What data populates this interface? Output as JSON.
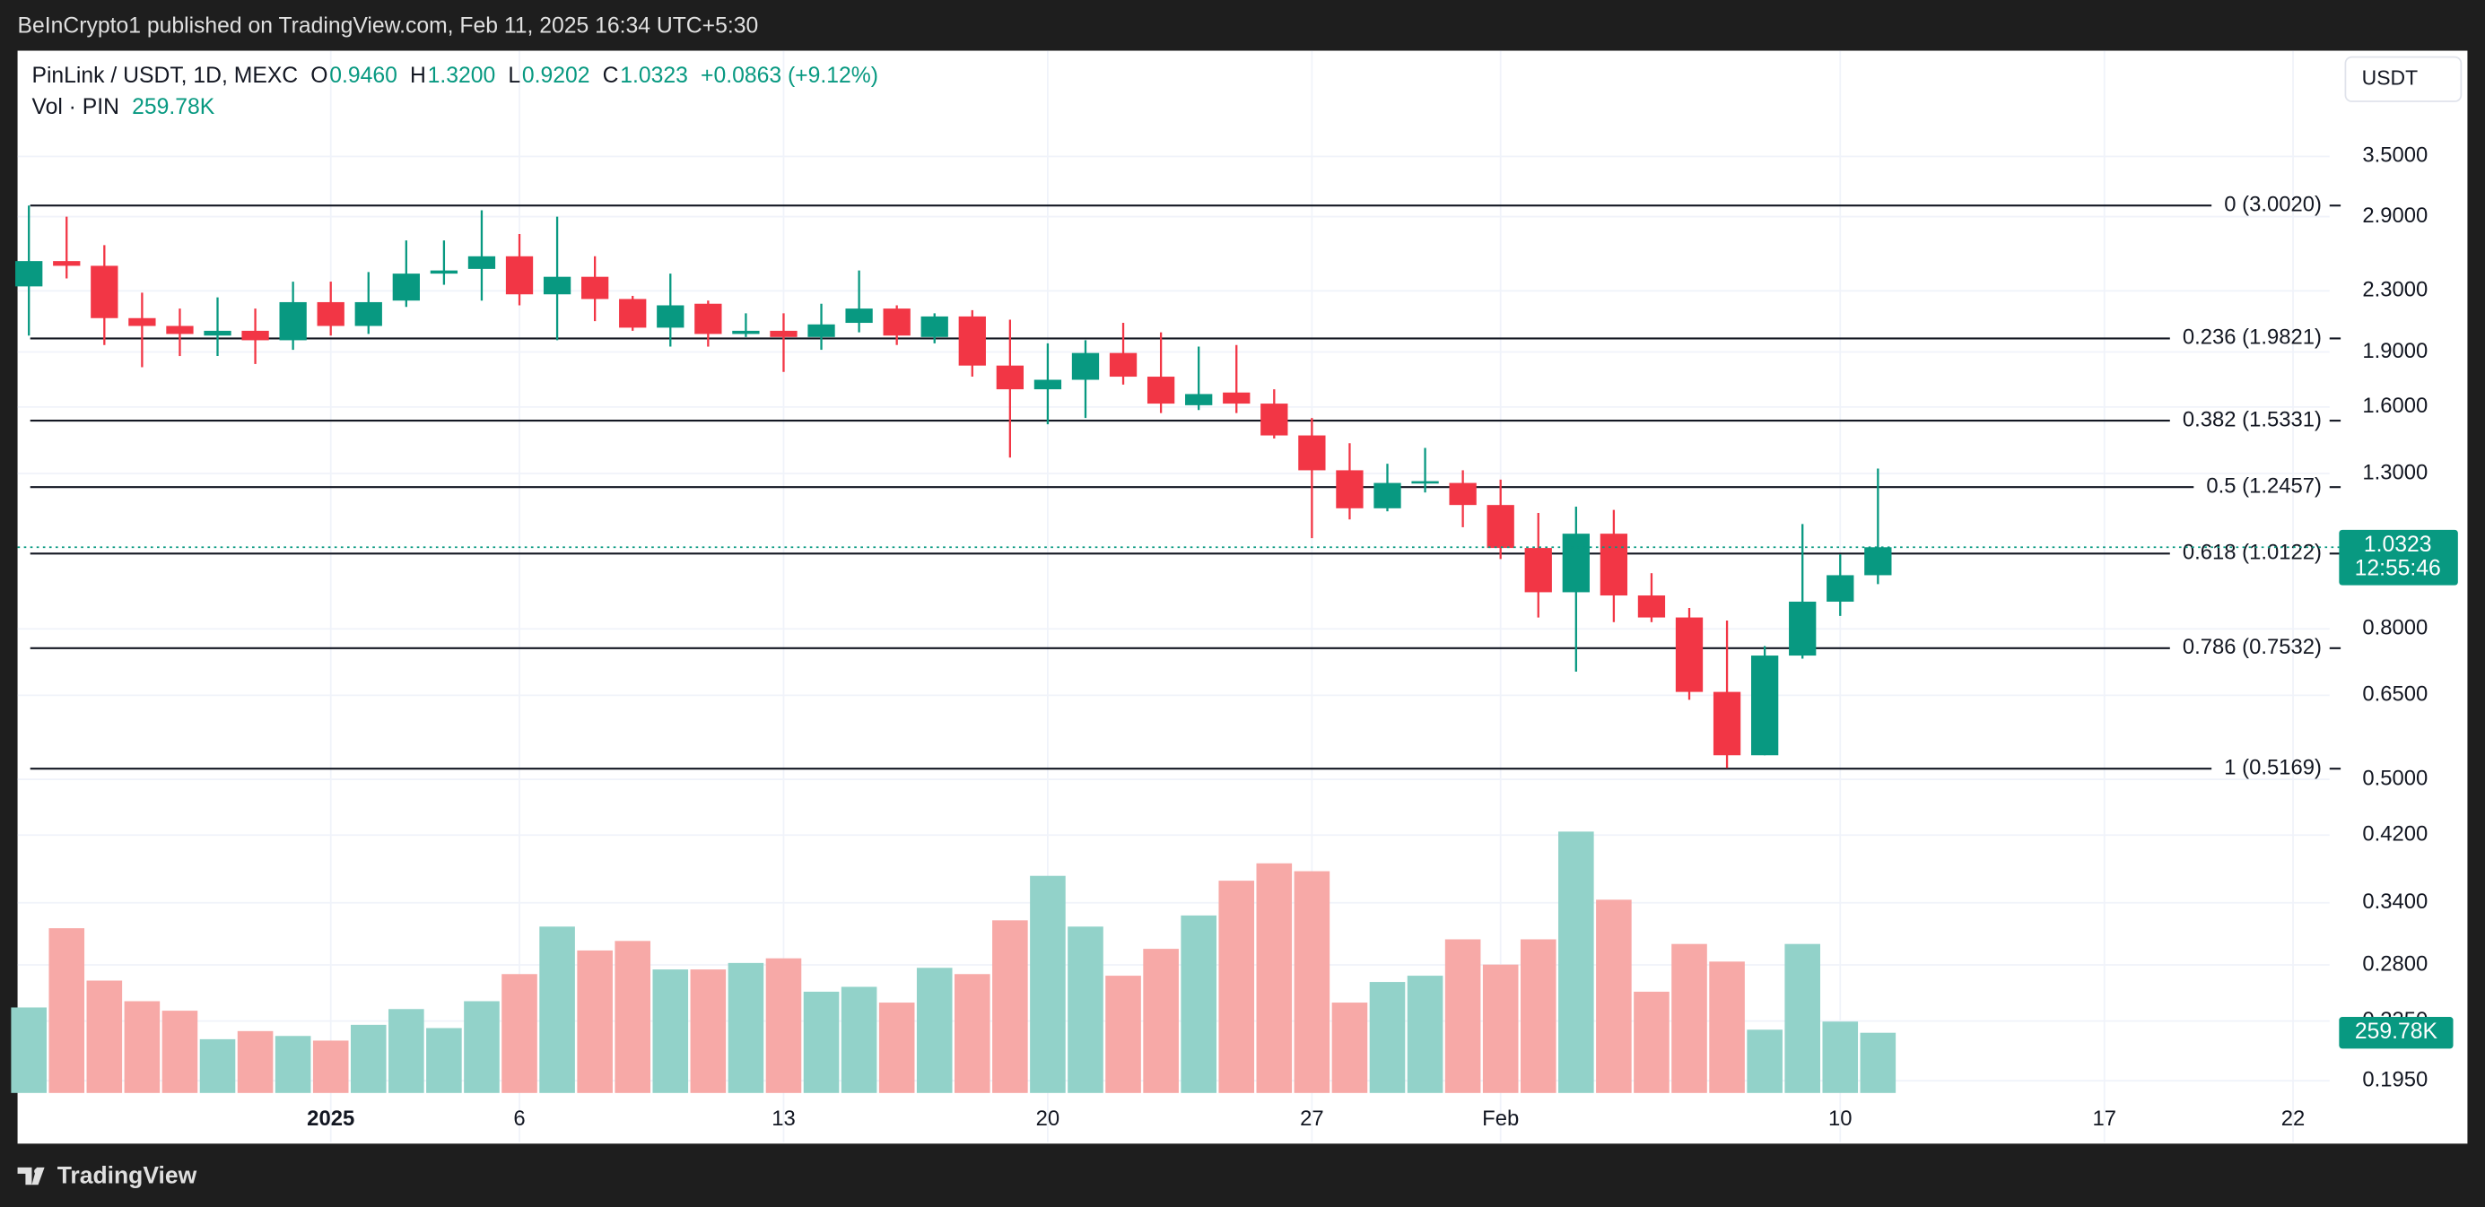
{
  "top_bar": {
    "text": "BeInCrypto1 published on TradingView.com, Feb 11, 2025 16:34 UTC+5:30"
  },
  "footer": {
    "brand": "TradingView"
  },
  "chart_data": {
    "type": "candlestick",
    "title": "PinLink / USDT, 1D, MEXC",
    "ohlc_header": [
      {
        "key": "O",
        "text": "0.9460"
      },
      {
        "key": "H",
        "text": "1.3200"
      },
      {
        "key": "L",
        "text": "0.9202"
      },
      {
        "key": "C",
        "text": "1.0323"
      }
    ],
    "change": "+0.0863 (+9.12%)",
    "volume_title": "Vol · PIN",
    "currency": "USDT",
    "countdown": "12:55:46",
    "open": [
      2.332,
      2.524,
      2.487,
      2.112,
      2.061,
      2.0,
      2.03,
      1.971,
      2.22,
      2.061,
      2.231,
      2.427,
      2.463,
      2.562,
      2.275,
      2.403,
      2.242,
      2.05,
      2.209,
      2.01,
      2.03,
      1.991,
      2.081,
      2.176,
      1.991,
      2.123,
      1.821,
      1.691,
      1.742,
      1.894,
      1.759,
      1.609,
      1.674,
      1.617,
      1.464,
      1.313,
      1.166,
      1.262,
      1.262,
      1.178,
      1.03,
      0.897,
      1.077,
      0.888,
      0.829,
      0.657,
      0.539,
      0.736,
      0.871,
      0.946
    ],
    "high": [
      3.002,
      2.9,
      2.653,
      2.287,
      2.176,
      2.253,
      2.176,
      2.367,
      2.367,
      2.439,
      2.692,
      2.692,
      2.958,
      2.746,
      2.9,
      2.562,
      2.264,
      2.427,
      2.231,
      2.144,
      2.144,
      2.209,
      2.451,
      2.198,
      2.144,
      2.165,
      2.102,
      1.952,
      1.971,
      2.081,
      2.02,
      1.932,
      1.942,
      1.691,
      1.546,
      1.429,
      1.34,
      1.408,
      1.313,
      1.275,
      1.149,
      1.172,
      1.16,
      0.952,
      0.854,
      0.821,
      0.758,
      1.11,
      1.01,
      1.32
    ],
    "low": [
      2.0,
      2.391,
      1.942,
      1.812,
      1.876,
      1.876,
      1.83,
      1.913,
      2.0,
      2.01,
      2.187,
      2.344,
      2.231,
      2.198,
      1.971,
      2.092,
      2.03,
      1.932,
      1.932,
      1.991,
      1.785,
      1.913,
      2.02,
      1.942,
      1.952,
      1.759,
      1.366,
      1.516,
      1.546,
      1.716,
      1.57,
      1.585,
      1.57,
      1.45,
      1.062,
      1.126,
      1.155,
      1.225,
      1.099,
      0.995,
      0.829,
      0.7,
      0.817,
      0.817,
      0.641,
      0.518,
      0.539,
      0.729,
      0.833,
      0.9202
    ],
    "close": [
      2.524,
      2.487,
      2.112,
      2.061,
      2.01,
      2.03,
      1.971,
      2.22,
      2.061,
      2.22,
      2.427,
      2.451,
      2.562,
      2.275,
      2.403,
      2.242,
      2.05,
      2.198,
      2.01,
      2.03,
      1.991,
      2.071,
      2.176,
      2.0,
      2.123,
      1.821,
      1.691,
      1.742,
      1.894,
      1.759,
      1.617,
      1.666,
      1.617,
      1.464,
      1.313,
      1.166,
      1.262,
      1.269,
      1.178,
      1.03,
      0.897,
      1.077,
      0.888,
      0.829,
      0.657,
      0.539,
      0.736,
      0.871,
      0.946,
      1.0323
    ],
    "volume": [
      369000,
      711000,
      485000,
      396000,
      355000,
      232000,
      267000,
      246000,
      226000,
      294000,
      362000,
      280000,
      396000,
      513000,
      718000,
      615000,
      656000,
      533000,
      533000,
      561000,
      581000,
      437000,
      458000,
      390000,
      540000,
      513000,
      745000,
      937000,
      718000,
      506000,
      622000,
      766000,
      916000,
      991000,
      957000,
      390000,
      479000,
      506000,
      663000,
      554000,
      663000,
      1128000,
      834000,
      437000,
      643000,
      567000,
      273000,
      643000,
      308000,
      259780
    ],
    "volume_value_labels": [
      null,
      null,
      null,
      null,
      null,
      null,
      null,
      null,
      null,
      null,
      null,
      null,
      null,
      null,
      null,
      null,
      null,
      null,
      null,
      null,
      null,
      null,
      null,
      null,
      null,
      null,
      null,
      null,
      null,
      null,
      null,
      null,
      null,
      null,
      null,
      null,
      null,
      null,
      null,
      null,
      null,
      null,
      null,
      null,
      null,
      null,
      null,
      null,
      null,
      "259.78K"
    ],
    "up_color": "#089981",
    "down_color": "#f23645",
    "up_volume_color": "#92d2c9",
    "down_volume_color": "#f7a9a7",
    "log_scale": true,
    "grid": true,
    "ylim": [
      0.161,
      4.87
    ],
    "yticks": [
      {
        "value": 3.5,
        "label": "3.5000"
      },
      {
        "value": 2.9,
        "label": "2.9000"
      },
      {
        "value": 2.3,
        "label": "2.3000"
      },
      {
        "value": 1.9,
        "label": "1.9000"
      },
      {
        "value": 1.6,
        "label": "1.6000"
      },
      {
        "value": 1.3,
        "label": "1.3000"
      },
      {
        "value": 0.8,
        "label": "0.8000"
      },
      {
        "value": 0.65,
        "label": "0.6500"
      },
      {
        "value": 0.5,
        "label": "0.5000"
      },
      {
        "value": 0.42,
        "label": "0.4200"
      },
      {
        "value": 0.34,
        "label": "0.3400"
      },
      {
        "value": 0.28,
        "label": "0.2800"
      },
      {
        "value": 0.235,
        "label": "0.2350"
      },
      {
        "value": 0.195,
        "label": "0.1950"
      }
    ],
    "xlim": [
      -0.3,
      60.8
    ],
    "xticks": [
      {
        "value": 8,
        "label": "2025"
      },
      {
        "value": 13,
        "label": "6"
      },
      {
        "value": 20,
        "label": "13"
      },
      {
        "value": 27,
        "label": "20"
      },
      {
        "value": 34,
        "label": "27"
      },
      {
        "value": 39,
        "label": "Feb"
      },
      {
        "value": 48,
        "label": "10"
      },
      {
        "value": 55,
        "label": "17"
      },
      {
        "value": 60,
        "label": "22"
      }
    ],
    "fib_levels": [
      {
        "value": 3.002,
        "label": "0 (3.0020)"
      },
      {
        "value": 1.9821,
        "label": "0.236 (1.9821)"
      },
      {
        "value": 1.5331,
        "label": "0.382 (1.5331)"
      },
      {
        "value": 1.2457,
        "label": "0.5 (1.2457)"
      },
      {
        "value": 1.0122,
        "label": "0.618 (1.0122)"
      },
      {
        "value": 0.7532,
        "label": "0.786 (0.7532)"
      },
      {
        "value": 0.5169,
        "label": "1 (0.5169)"
      }
    ]
  }
}
